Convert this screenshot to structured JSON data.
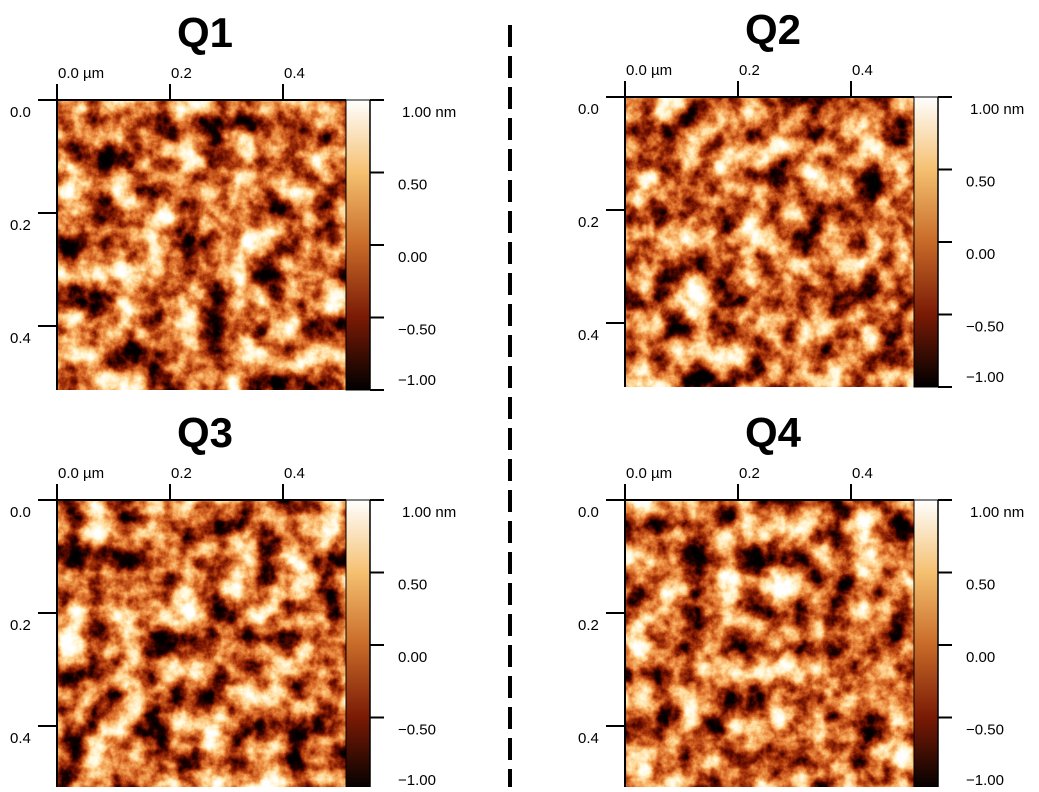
{
  "panels": [
    {
      "title": "Q1",
      "x_ticks": [
        "0.0 µm",
        "0.2",
        "0.4"
      ],
      "y_ticks": [
        "0.0",
        "0.2",
        "0.4"
      ],
      "colorbar_ticks": [
        "1.00 nm",
        "0.50",
        "0.00",
        "−0.50",
        "−1.00"
      ]
    },
    {
      "title": "Q2",
      "x_ticks": [
        "0.0 µm",
        "0.2",
        "0.4"
      ],
      "y_ticks": [
        "0.0",
        "0.2",
        "0.4"
      ],
      "colorbar_ticks": [
        "1.00 nm",
        "0.50",
        "0.00",
        "−0.50",
        "−1.00"
      ]
    },
    {
      "title": "Q3",
      "x_ticks": [
        "0.0 µm",
        "0.2",
        "0.4"
      ],
      "y_ticks": [
        "0.0",
        "0.2",
        "0.4"
      ],
      "colorbar_ticks": [
        "1.00 nm",
        "0.50",
        "0.00",
        "−0.50",
        "−1.00"
      ]
    },
    {
      "title": "Q4",
      "x_ticks": [
        "0.0 µm",
        "0.2",
        "0.4"
      ],
      "y_ticks": [
        "0.0",
        "0.2",
        "0.4"
      ],
      "colorbar_ticks": [
        "1.00 nm",
        "0.50",
        "0.00",
        "−0.50",
        "−1.00"
      ]
    }
  ]
}
